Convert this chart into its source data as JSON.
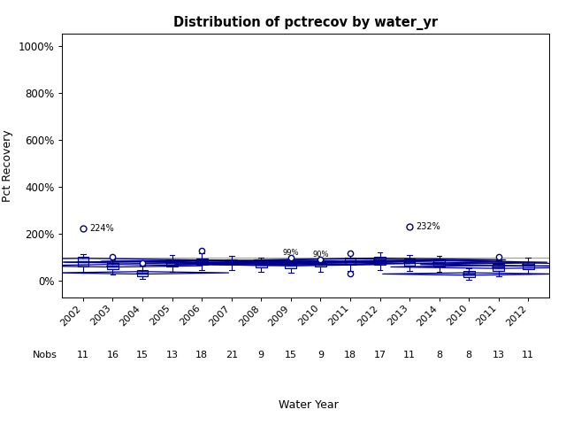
{
  "title": "Distribution of pctrecov by water_yr",
  "xlabel": "Water Year",
  "ylabel": "Pct Recovery",
  "reference_line": 100,
  "ylim": [
    -70,
    1050
  ],
  "yticks": [
    0,
    200,
    400,
    600,
    800,
    1000
  ],
  "yticklabels": [
    "0%",
    "200%",
    "400%",
    "600%",
    "800%",
    "1000%"
  ],
  "groups": [
    {
      "label": "2002",
      "nobs": 11,
      "q1": 62,
      "median": 82,
      "q3": 102,
      "whisker_low": 35,
      "whisker_high": 115,
      "mean": 88,
      "outliers": [
        224
      ],
      "near_outliers": [],
      "special_label": "224%"
    },
    {
      "label": "2003",
      "nobs": 16,
      "q1": 50,
      "median": 63,
      "q3": 75,
      "whisker_low": 28,
      "whisker_high": 90,
      "mean": 65,
      "outliers": [
        105
      ],
      "near_outliers": [],
      "special_label": ""
    },
    {
      "label": "2004",
      "nobs": 15,
      "q1": 22,
      "median": 32,
      "q3": 46,
      "whisker_low": 8,
      "whisker_high": 65,
      "mean": 35,
      "outliers": [
        78
      ],
      "near_outliers": [],
      "special_label": ""
    },
    {
      "label": "2005",
      "nobs": 13,
      "q1": 62,
      "median": 78,
      "q3": 92,
      "whisker_low": 40,
      "whisker_high": 110,
      "mean": 80,
      "outliers": [],
      "near_outliers": [],
      "special_label": ""
    },
    {
      "label": "2006",
      "nobs": 18,
      "q1": 68,
      "median": 82,
      "q3": 96,
      "whisker_low": 45,
      "whisker_high": 118,
      "mean": 84,
      "outliers": [
        130
      ],
      "near_outliers": [],
      "special_label": ""
    },
    {
      "label": "2007",
      "nobs": 21,
      "q1": 68,
      "median": 80,
      "q3": 92,
      "whisker_low": 48,
      "whisker_high": 108,
      "mean": 81,
      "outliers": [],
      "near_outliers": [],
      "special_label": ""
    },
    {
      "label": "2008",
      "nobs": 9,
      "q1": 58,
      "median": 70,
      "q3": 82,
      "whisker_low": 38,
      "whisker_high": 98,
      "mean": 72,
      "outliers": [],
      "near_outliers": [],
      "special_label": ""
    },
    {
      "label": "2009",
      "nobs": 15,
      "q1": 55,
      "median": 68,
      "q3": 80,
      "whisker_low": 35,
      "whisker_high": 99,
      "mean": 70,
      "outliers": [],
      "near_outliers": [
        99
      ],
      "near_labels": [
        "99%"
      ],
      "special_label": ""
    },
    {
      "label": "2010",
      "nobs": 9,
      "q1": 60,
      "median": 72,
      "q3": 85,
      "whisker_low": 40,
      "whisker_high": 90,
      "mean": 74,
      "outliers": [],
      "near_outliers": [
        90
      ],
      "near_labels": [
        "90%"
      ],
      "special_label": ""
    },
    {
      "label": "2011",
      "nobs": 18,
      "q1": 68,
      "median": 85,
      "q3": 100,
      "whisker_low": 42,
      "whisker_high": 118,
      "mean": 87,
      "outliers": [
        30,
        120
      ],
      "near_outliers": [],
      "special_label": ""
    },
    {
      "label": "2012",
      "nobs": 17,
      "q1": 70,
      "median": 88,
      "q3": 105,
      "whisker_low": 48,
      "whisker_high": 122,
      "mean": 90,
      "outliers": [],
      "near_outliers": [],
      "special_label": ""
    },
    {
      "label": "2013",
      "nobs": 11,
      "q1": 65,
      "median": 80,
      "q3": 95,
      "whisker_low": 42,
      "whisker_high": 112,
      "mean": 82,
      "outliers": [
        232
      ],
      "near_outliers": [],
      "special_label": "232%"
    },
    {
      "label": "2014",
      "nobs": 8,
      "q1": 62,
      "median": 78,
      "q3": 92,
      "whisker_low": 40,
      "whisker_high": 108,
      "mean": 80,
      "outliers": [],
      "near_outliers": [],
      "special_label": ""
    },
    {
      "label": "2010",
      "nobs": 8,
      "q1": 18,
      "median": 28,
      "q3": 42,
      "whisker_low": 5,
      "whisker_high": 55,
      "mean": 30,
      "outliers": [],
      "near_outliers": [],
      "special_label": ""
    },
    {
      "label": "2011",
      "nobs": 13,
      "q1": 42,
      "median": 58,
      "q3": 72,
      "whisker_low": 22,
      "whisker_high": 88,
      "mean": 60,
      "outliers": [
        105
      ],
      "near_outliers": [],
      "special_label": ""
    },
    {
      "label": "2012",
      "nobs": 11,
      "q1": 52,
      "median": 68,
      "q3": 82,
      "whisker_low": 30,
      "whisker_high": 98,
      "mean": 70,
      "outliers": [],
      "near_outliers": [],
      "special_label": ""
    }
  ],
  "box_facecolor": "#b8cfe0",
  "box_edgecolor": "#00008b",
  "whisker_color": "#00008b",
  "median_color": "#00008b",
  "outlier_color": "#000080",
  "mean_marker_color": "#00008b",
  "ref_line_color": "#a0a0a0"
}
